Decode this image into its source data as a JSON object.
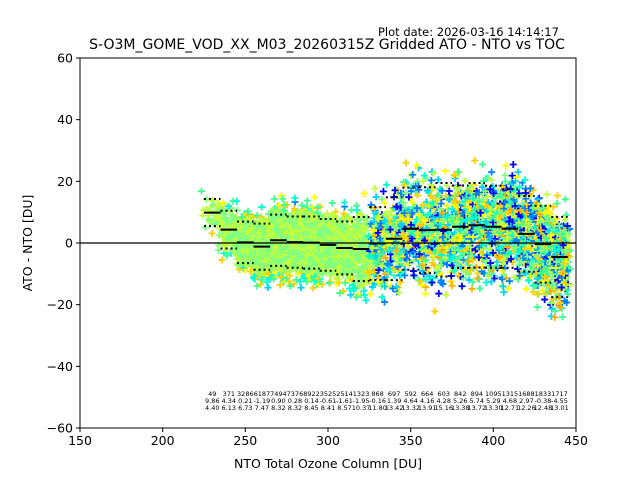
{
  "chart_data": {
    "type": "scatter",
    "title": "S-O3M_GOME_VOD_XX_M03_20260315Z Gridded ATO - NTO vs TOC",
    "plot_date": "Plot date: 2026-03-16 14:14:17",
    "xlabel": "NTO Total Ozone Column [DU]",
    "ylabel": "ATO - NTO [DU]",
    "xlim": [
      150,
      450
    ],
    "ylim": [
      -60,
      60
    ],
    "xticks": [
      "150",
      "200",
      "250",
      "300",
      "350",
      "400",
      "450"
    ],
    "yticks": [
      "60",
      "40",
      "20",
      "0",
      "−20",
      "−40",
      "−60"
    ],
    "zero_line": 0,
    "marker": "plus",
    "colormap": [
      "#0000ff",
      "#0080ff",
      "#00d0ff",
      "#00ffd0",
      "#40ff90",
      "#80ff80",
      "#c0ff40",
      "#ffff00",
      "#ffd000",
      "#ffb000"
    ],
    "bins": {
      "x_centers": [
        230,
        240,
        250,
        260,
        270,
        280,
        290,
        300,
        310,
        320,
        330,
        340,
        350,
        360,
        370,
        380,
        390,
        400,
        410,
        420,
        430,
        440
      ],
      "counts": [
        "49",
        "371",
        "3286",
        "6187",
        "7494",
        "7376",
        "8922",
        "3525",
        "2514",
        "1323",
        "868",
        "697",
        "592",
        "664",
        "603",
        "842",
        "894",
        "1095",
        "1315",
        "1688",
        "1833",
        "1717"
      ],
      "means": [
        "9.86",
        "4.34",
        "0.21",
        "-1.19",
        "0.90",
        "0.28",
        "0.14",
        "-0.61",
        "-1.61",
        "-1.95",
        "-0.16",
        "1.39",
        "4.64",
        "4.16",
        "4.28",
        "5.26",
        "5.74",
        "5.29",
        "4.68",
        "2.97",
        "-0.38",
        "-4.55"
      ],
      "stds": [
        "4.40",
        "6.13",
        "6.73",
        "7.47",
        "8.32",
        "8.32",
        "8.45",
        "8.41",
        "8.57",
        "10.37",
        "11.80",
        "13.42",
        "13.32",
        "13.91",
        "15.16",
        "13.38",
        "13.72",
        "13.30",
        "12.71",
        "12.26",
        "12.48",
        "13.01"
      ]
    }
  }
}
